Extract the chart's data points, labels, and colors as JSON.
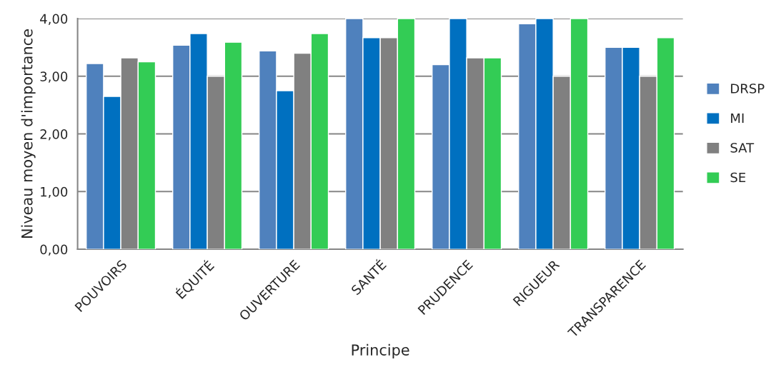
{
  "chart_data": {
    "type": "bar",
    "xlabel": "Principe",
    "ylabel": "Niveau moyen d'importance",
    "categories": [
      "POUVOIRS",
      "ÉQUITÉ",
      "OUVERTURE",
      "SANTÉ",
      "PRUDENCE",
      "RIGUEUR",
      "TRANSPARENCE"
    ],
    "series": [
      {
        "name": "DRSP",
        "color": "#4f81bd",
        "values": [
          3.22,
          3.54,
          3.44,
          4.0,
          3.2,
          3.91,
          3.5
        ]
      },
      {
        "name": "MI",
        "color": "#0070c0",
        "values": [
          2.65,
          3.74,
          2.75,
          3.67,
          4.0,
          4.0,
          3.5
        ]
      },
      {
        "name": "SAT",
        "color": "#808080",
        "values": [
          3.32,
          3.0,
          3.4,
          3.67,
          3.32,
          3.0,
          3.0
        ]
      },
      {
        "name": "SE",
        "color": "#33cc55",
        "values": [
          3.25,
          3.59,
          3.74,
          4.0,
          3.32,
          4.0,
          3.67
        ]
      }
    ],
    "ylim": [
      0,
      4
    ],
    "yticks": [
      {
        "value": 0,
        "label": "0,00"
      },
      {
        "value": 1,
        "label": "1,00"
      },
      {
        "value": 2,
        "label": "2,00"
      },
      {
        "value": 3,
        "label": "3,00"
      },
      {
        "value": 4,
        "label": "4,00"
      }
    ],
    "grid": "y",
    "legend": "right"
  }
}
